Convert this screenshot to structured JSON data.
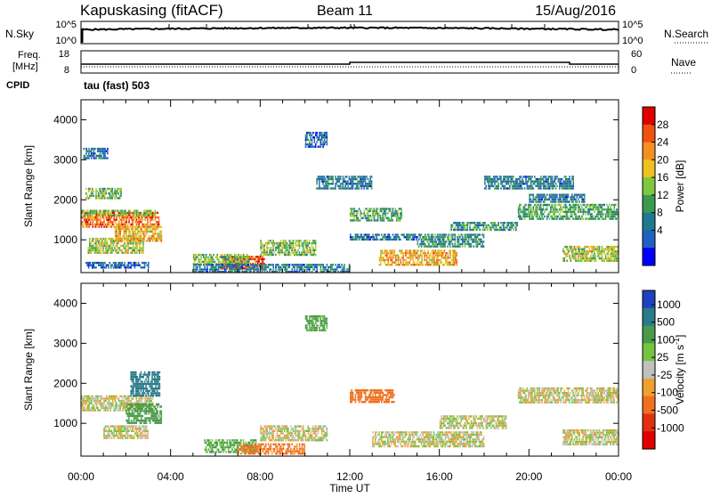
{
  "header": {
    "station": "Kapuskasing (fitACF)",
    "beam": "Beam 11",
    "date": "15/Aug/2016"
  },
  "noise_panel": {
    "left_label": "N.Sky",
    "right_label": "N.Search",
    "left_ticks": [
      "10^5",
      "10^0"
    ],
    "right_ticks": [
      "10^5",
      "10^0"
    ]
  },
  "freq_panel": {
    "left_label_1": "Freq.",
    "left_label_2": "[MHz]",
    "right_label": "Nave",
    "left_ticks": [
      "18",
      "8"
    ],
    "right_ticks": [
      "60",
      "0"
    ],
    "cpid_label": "CPID",
    "cpid_text": "tau (fast) 503"
  },
  "colors": {
    "power_scale": [
      "#0000ff",
      "#2060c0",
      "#207890",
      "#3a9a50",
      "#7ec840",
      "#f0c020",
      "#f49020",
      "#f05010",
      "#e00000"
    ],
    "velocity_scale": [
      "#2040c0",
      "#2a7a8a",
      "#4a9a4a",
      "#74c440",
      "#c0c0c0",
      "#f0a030",
      "#f07020",
      "#e03010",
      "#e00000"
    ]
  },
  "chart_data": [
    {
      "type": "heatmap",
      "ylabel": "Slant Range [km]",
      "xlabel": "Time UT",
      "xlim": [
        "00:00",
        "24:00"
      ],
      "ylim": [
        180,
        4500
      ],
      "x_ticks": [
        "00:00",
        "04:00",
        "08:00",
        "12:00",
        "16:00",
        "20:00",
        "00:00"
      ],
      "y_ticks": [
        1000,
        2000,
        3000,
        4000
      ],
      "colorbar": {
        "label": "Power [dB]",
        "ticks": [
          "28",
          "24",
          "20",
          "16",
          "12",
          "8",
          "4"
        ],
        "range": [
          0,
          30
        ]
      },
      "regions": [
        {
          "t": [
            0.0,
            3.5
          ],
          "r": [
            1350,
            1700
          ],
          "value": 24
        },
        {
          "t": [
            0.0,
            3.3
          ],
          "r": [
            1600,
            1750
          ],
          "value": 14
        },
        {
          "t": [
            0.2,
            1.8
          ],
          "r": [
            2050,
            2300
          ],
          "value": 14
        },
        {
          "t": [
            0.3,
            2.8
          ],
          "r": [
            700,
            1050
          ],
          "value": 16
        },
        {
          "t": [
            1.5,
            3.6
          ],
          "r": [
            1000,
            1350
          ],
          "value": 20
        },
        {
          "t": [
            0.1,
            1.2
          ],
          "r": [
            3050,
            3300
          ],
          "value": 8
        },
        {
          "t": [
            0.2,
            3.0
          ],
          "r": [
            300,
            450
          ],
          "value": 6
        },
        {
          "t": [
            6.2,
            8.2
          ],
          "r": [
            300,
            600
          ],
          "value": 26
        },
        {
          "t": [
            5.0,
            7.5
          ],
          "r": [
            400,
            650
          ],
          "value": 14
        },
        {
          "t": [
            8.0,
            10.5
          ],
          "r": [
            650,
            1000
          ],
          "value": 14
        },
        {
          "t": [
            5.0,
            12.0
          ],
          "r": [
            220,
            400
          ],
          "value": 8
        },
        {
          "t": [
            12.0,
            14.3
          ],
          "r": [
            1500,
            1800
          ],
          "value": 12
        },
        {
          "t": [
            12.0,
            15.0
          ],
          "r": [
            1000,
            1150
          ],
          "value": 8
        },
        {
          "t": [
            13.3,
            16.8
          ],
          "r": [
            400,
            750
          ],
          "value": 20
        },
        {
          "t": [
            15.0,
            18.0
          ],
          "r": [
            850,
            1150
          ],
          "value": 10
        },
        {
          "t": [
            16.5,
            19.5
          ],
          "r": [
            1250,
            1450
          ],
          "value": 10
        },
        {
          "t": [
            19.5,
            24.0
          ],
          "r": [
            1550,
            1900
          ],
          "value": 12
        },
        {
          "t": [
            20.0,
            22.5
          ],
          "r": [
            1950,
            2150
          ],
          "value": 8
        },
        {
          "t": [
            21.5,
            24.0
          ],
          "r": [
            450,
            850
          ],
          "value": 16
        },
        {
          "t": [
            10.5,
            13.0
          ],
          "r": [
            2300,
            2600
          ],
          "value": 8
        },
        {
          "t": [
            10.0,
            11.0
          ],
          "r": [
            3300,
            3700
          ],
          "value": 6
        },
        {
          "t": [
            18.0,
            22.0
          ],
          "r": [
            2300,
            2600
          ],
          "value": 8
        }
      ]
    },
    {
      "type": "heatmap",
      "ylabel": "Slant Range [km]",
      "xlabel": "Time UT",
      "xlim": [
        "00:00",
        "24:00"
      ],
      "ylim": [
        180,
        4500
      ],
      "x_ticks": [
        "00:00",
        "04:00",
        "08:00",
        "12:00",
        "16:00",
        "20:00",
        "00:00"
      ],
      "y_ticks": [
        1000,
        2000,
        3000,
        4000
      ],
      "colorbar": {
        "label": "Velocity [m s^-1]",
        "ticks": [
          "1000",
          "500",
          "100",
          "25",
          "-25",
          "-100",
          "-500",
          "-1000"
        ],
        "range": [
          -1000,
          1000
        ]
      },
      "regions": [
        {
          "t": [
            0.0,
            3.2
          ],
          "r": [
            1350,
            1700
          ],
          "value": 0
        },
        {
          "t": [
            2.0,
            3.6
          ],
          "r": [
            1000,
            1500
          ],
          "value": 300
        },
        {
          "t": [
            2.2,
            3.5
          ],
          "r": [
            1700,
            2300
          ],
          "value": 600
        },
        {
          "t": [
            1.0,
            3.0
          ],
          "r": [
            650,
            950
          ],
          "value": 0
        },
        {
          "t": [
            5.5,
            7.8
          ],
          "r": [
            280,
            600
          ],
          "value": 120
        },
        {
          "t": [
            7.0,
            10.0
          ],
          "r": [
            250,
            500
          ],
          "value": -150
        },
        {
          "t": [
            8.0,
            11.0
          ],
          "r": [
            600,
            950
          ],
          "value": 0
        },
        {
          "t": [
            12.0,
            14.0
          ],
          "r": [
            1550,
            1850
          ],
          "value": -200
        },
        {
          "t": [
            13.0,
            18.0
          ],
          "r": [
            450,
            800
          ],
          "value": 0
        },
        {
          "t": [
            16.0,
            19.0
          ],
          "r": [
            900,
            1200
          ],
          "value": 0
        },
        {
          "t": [
            19.5,
            24.0
          ],
          "r": [
            1550,
            1900
          ],
          "value": 0
        },
        {
          "t": [
            21.5,
            24.0
          ],
          "r": [
            450,
            850
          ],
          "value": 0
        },
        {
          "t": [
            10.0,
            11.0
          ],
          "r": [
            3300,
            3700
          ],
          "value": 150
        }
      ]
    }
  ]
}
